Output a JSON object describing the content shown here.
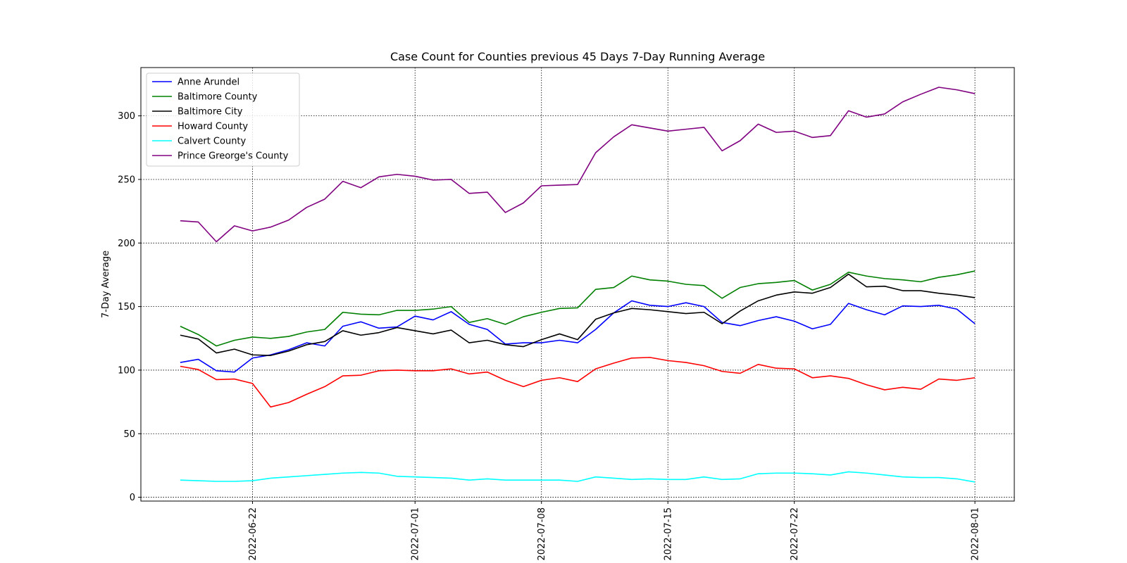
{
  "chart_data": {
    "type": "line",
    "title": "Case Count for Counties previous 45 Days 7-Day Running Average",
    "xlabel": "",
    "ylabel": "7-Day Average",
    "x_start": "2022-06-18",
    "x_ticks": [
      "2022-06-22",
      "2022-07-01",
      "2022-07-08",
      "2022-07-15",
      "2022-07-22",
      "2022-08-01"
    ],
    "ylim": [
      -3,
      338
    ],
    "y_ticks": [
      0,
      50,
      100,
      150,
      200,
      250,
      300
    ],
    "grid": true,
    "legend_position": "upper-left",
    "series": [
      {
        "name": "Anne Arundel",
        "color": "#0000ff",
        "values": [
          106,
          108.5,
          99.5,
          98.5,
          109.5,
          112,
          116,
          121.5,
          119,
          134.5,
          138,
          133,
          134,
          142.5,
          139.5,
          146,
          136,
          132,
          120.5,
          121.5,
          121.5,
          123.5,
          121.5,
          132,
          145,
          154.5,
          151,
          150,
          153,
          150,
          137.5,
          135,
          139,
          142,
          138.5,
          132.5,
          136,
          152.5,
          147.5,
          143.5,
          150.5,
          150,
          151,
          148,
          136.5
        ]
      },
      {
        "name": "Baltimore County",
        "color": "#008000",
        "values": [
          134.5,
          128,
          119,
          123.5,
          126,
          125,
          126.5,
          130,
          132,
          145.5,
          144,
          143.5,
          147,
          147,
          148,
          150,
          137.5,
          140.5,
          136,
          142,
          145.5,
          148.5,
          149,
          163.5,
          165,
          174,
          171,
          170,
          167.5,
          166.5,
          156.5,
          165,
          168,
          169,
          170.5,
          163,
          167.5,
          177,
          174,
          172,
          171,
          169.5,
          173,
          175,
          178
        ]
      },
      {
        "name": "Baltimore City",
        "color": "#000000",
        "values": [
          127.5,
          124.5,
          113.5,
          116.5,
          112,
          111.5,
          115,
          120,
          122.5,
          131,
          127.5,
          129.5,
          133.5,
          131,
          128.5,
          131.5,
          121.5,
          123.5,
          120,
          118.5,
          124,
          128.5,
          124,
          140,
          145,
          148.5,
          147.5,
          146,
          144.5,
          145.5,
          136.5,
          146.5,
          154.5,
          159,
          161.5,
          160.5,
          165,
          175.5,
          165.5,
          166,
          162.5,
          162.5,
          160.5,
          159,
          157
        ]
      },
      {
        "name": "Howard County",
        "color": "#ff0000",
        "values": [
          103,
          100.5,
          92.5,
          93,
          89.5,
          71,
          74.5,
          81,
          87,
          95.5,
          96,
          99.5,
          100,
          99.5,
          99.5,
          101,
          97,
          98.5,
          92,
          87,
          92,
          94,
          91,
          101,
          105.5,
          109.5,
          110,
          107.5,
          106,
          103.5,
          99,
          97.5,
          104.5,
          101.5,
          101,
          94,
          95.5,
          93.5,
          88.5,
          84.5,
          86.5,
          85,
          93,
          92,
          94
        ]
      },
      {
        "name": "Calvert County",
        "color": "#00ffff",
        "values": [
          13.5,
          13,
          12.5,
          12.5,
          13,
          15,
          16,
          17,
          18,
          19,
          19.5,
          19,
          16.5,
          16,
          15.5,
          15,
          13.5,
          14.5,
          13.5,
          13.5,
          13.5,
          13.5,
          12.5,
          16,
          15,
          14,
          14.5,
          14,
          14,
          16,
          14,
          14.5,
          18.5,
          19,
          19,
          18.5,
          17.5,
          20,
          19,
          17.5,
          16,
          15.5,
          15.5,
          14.5,
          12
        ]
      },
      {
        "name": "Prince Greorge's County",
        "color": "#800080",
        "values": [
          217.5,
          216.5,
          201,
          213.5,
          209.5,
          212.5,
          218,
          228,
          234.5,
          248.5,
          243.5,
          252,
          254,
          252.5,
          249.5,
          250,
          239,
          240,
          224,
          231.5,
          245,
          245.5,
          246,
          271,
          283.5,
          293,
          290.5,
          288,
          289.5,
          291,
          272.5,
          280.5,
          293.5,
          287,
          288,
          283,
          284.5,
          304,
          299,
          301.5,
          311,
          317,
          322.5,
          320.5,
          317.5
        ]
      }
    ]
  }
}
